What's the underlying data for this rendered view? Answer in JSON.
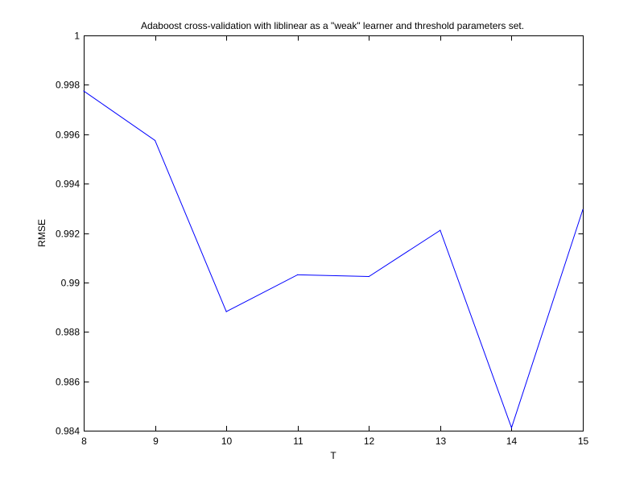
{
  "chart_data": {
    "type": "line",
    "title": "Adaboost cross-validation with liblinear as a \"weak\" learner and threshold parameters set.",
    "xlabel": "T",
    "ylabel": "RMSE",
    "xlim": [
      8,
      15
    ],
    "ylim": [
      0.984,
      1
    ],
    "x_ticks": [
      8,
      9,
      10,
      11,
      12,
      13,
      14,
      15
    ],
    "x_tick_labels": [
      "8",
      "9",
      "10",
      "11",
      "12",
      "13",
      "14",
      "15"
    ],
    "y_ticks": [
      0.984,
      0.986,
      0.988,
      0.99,
      0.992,
      0.994,
      0.996,
      0.998,
      1
    ],
    "y_tick_labels": [
      "0.984",
      "0.986",
      "0.988",
      "0.99",
      "0.992",
      "0.994",
      "0.996",
      "0.998",
      "1"
    ],
    "grid": false,
    "series": [
      {
        "color": "#0000ff",
        "x": [
          8,
          9,
          10,
          11,
          12,
          13,
          14,
          15
        ],
        "y": [
          0.99775,
          0.99575,
          0.98882,
          0.99031,
          0.99024,
          0.99211,
          0.98412,
          0.99295
        ]
      }
    ]
  }
}
